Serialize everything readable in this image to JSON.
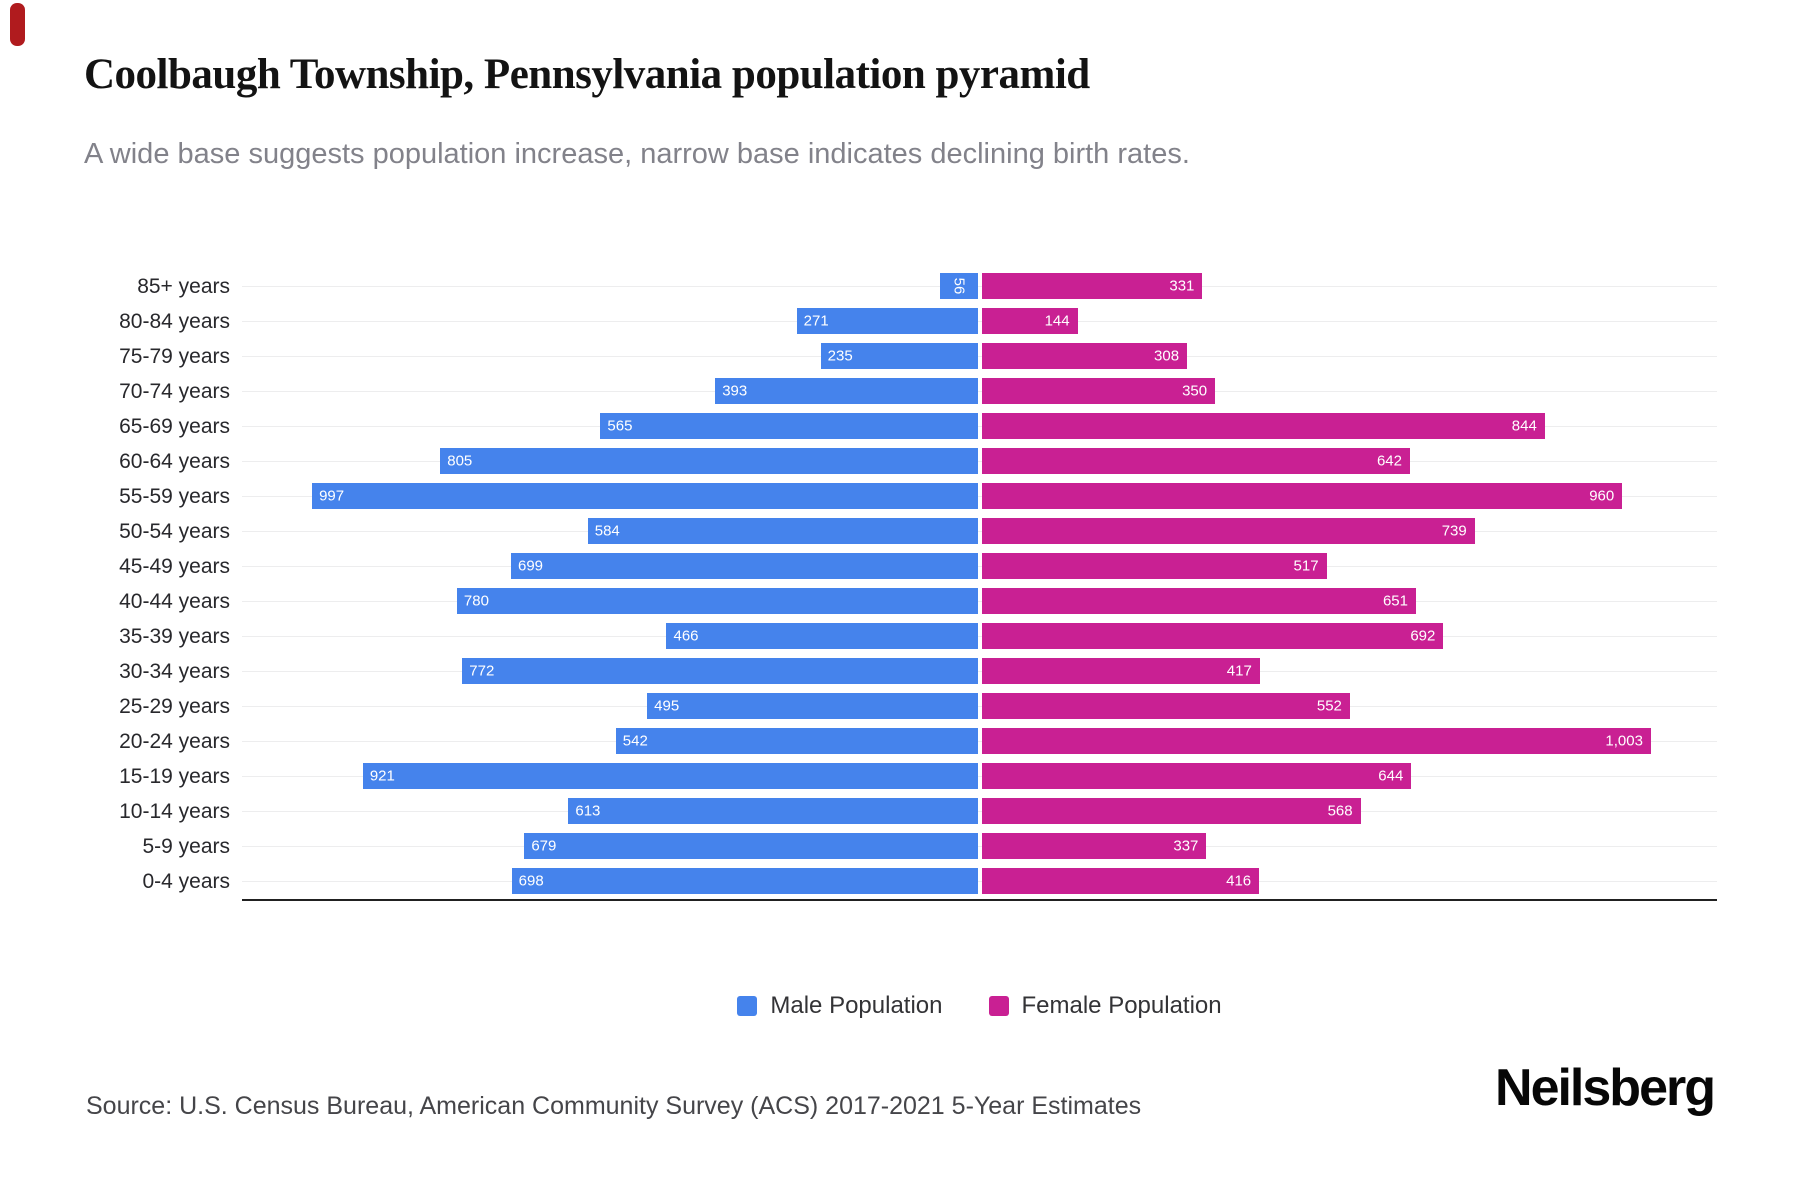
{
  "header": {
    "title": "Coolbaugh Township, Pennsylvania population pyramid",
    "subtitle": "A wide base suggests population increase, narrow base indicates declining birth rates."
  },
  "chart_data": {
    "type": "bar",
    "subtype": "population-pyramid",
    "orientation": "horizontal",
    "categories": [
      "85+ years",
      "80-84 years",
      "75-79 years",
      "70-74 years",
      "65-69 years",
      "60-64 years",
      "55-59 years",
      "50-54 years",
      "45-49 years",
      "40-44 years",
      "35-39 years",
      "30-34 years",
      "25-29 years",
      "20-24 years",
      "15-19 years",
      "10-14 years",
      "5-9 years",
      "0-4 years"
    ],
    "series": [
      {
        "name": "Male Population",
        "color": "#4583ec",
        "values": [
          56,
          271,
          235,
          393,
          565,
          805,
          997,
          584,
          699,
          780,
          466,
          772,
          495,
          542,
          921,
          613,
          679,
          698
        ]
      },
      {
        "name": "Female Population",
        "color": "#c92093",
        "values": [
          331,
          144,
          308,
          350,
          844,
          642,
          960,
          739,
          517,
          651,
          692,
          417,
          552,
          1003,
          644,
          568,
          337,
          416
        ]
      }
    ],
    "axis_max_per_side": 1105,
    "grid": true,
    "value_labels": "inside-bar-ends",
    "legend_position": "bottom"
  },
  "legend": {
    "male_label": "Male Population",
    "female_label": "Female Population"
  },
  "footer": {
    "source": "Source: U.S. Census Bureau, American Community Survey (ACS) 2017-2021 5-Year Estimates",
    "brand": "Neilsberg"
  }
}
